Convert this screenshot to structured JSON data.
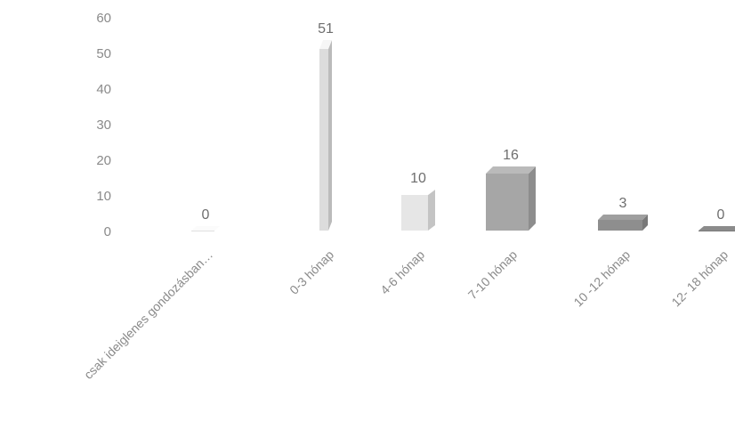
{
  "chart_data": {
    "type": "bar",
    "categories": [
      "csak ideiglenes gondozásban…",
      "0-3 hónap",
      "4-6 hónap",
      "7-10 hónap",
      "10 -12 hónap",
      "12- 18 hónap"
    ],
    "values": [
      0,
      51,
      10,
      16,
      3,
      0
    ],
    "data_labels": [
      "0",
      "51",
      "10",
      "16",
      "3",
      "0"
    ],
    "y_ticks": [
      "60",
      "50",
      "40",
      "30",
      "20",
      "10",
      "0"
    ],
    "ylim": [
      0,
      60
    ],
    "title": "",
    "xlabel": "",
    "ylabel": "",
    "grid": false,
    "legend": "none",
    "bar_style": "3d",
    "colors": {
      "bar_fronts": [
        "#e0e0e0",
        "#dcdcdc",
        "#e6e6e6",
        "#a6a6a6",
        "#8e8e8e",
        "#7c7c7c"
      ],
      "tick_text": "#8a8a8a",
      "label_text": "#6e6e6e"
    }
  }
}
